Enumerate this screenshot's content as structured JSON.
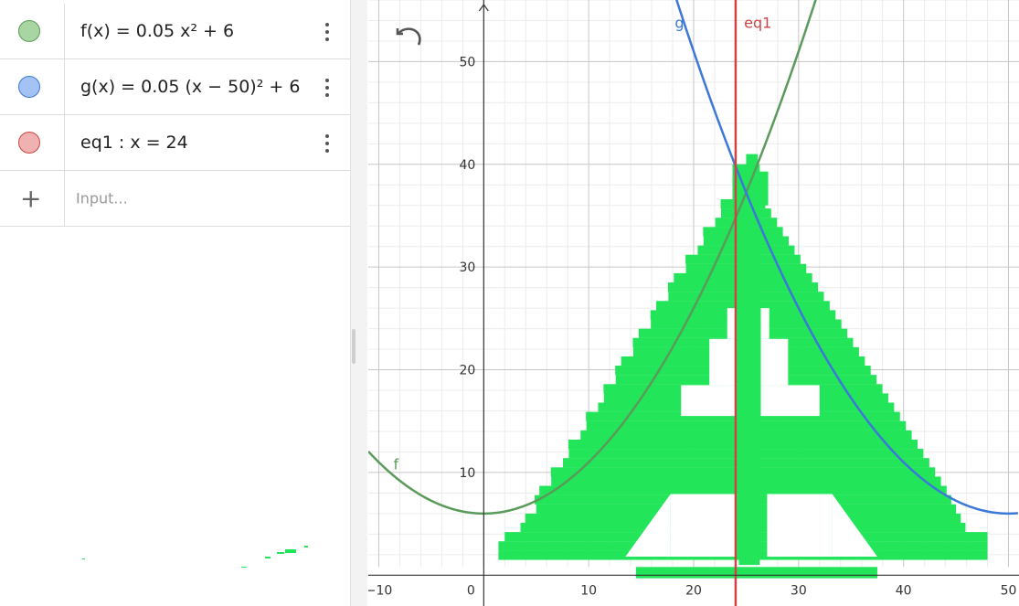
{
  "algebra": {
    "rows": [
      {
        "name": "f",
        "expression": "f(x)  =  0.05 x² + 6",
        "color": "#6aa84f"
      },
      {
        "name": "g",
        "expression": "g(x)  =  0.05 (x − 50)² + 6",
        "color": "#3c78d8"
      },
      {
        "name": "eq1",
        "expression": "eq1 : x  =  24",
        "color": "#cc4444"
      }
    ],
    "input_placeholder": "Input..."
  },
  "graph": {
    "x_range": [
      -11,
      51
    ],
    "y_range": [
      -3,
      56
    ],
    "x_ticks": [
      "−10",
      "0",
      "10",
      "20",
      "30",
      "40",
      "50"
    ],
    "y_ticks": [
      "10",
      "20",
      "30",
      "40",
      "50"
    ],
    "curve_labels": {
      "f": "f",
      "g": "g",
      "eq1": "eq1"
    },
    "colors": {
      "f": "#5a9a5a",
      "g": "#3c78d8",
      "eq1": "#cc4444",
      "fill": "#22e55a"
    }
  },
  "icons": {
    "undo": "undo-icon",
    "more": "kebab-menu-icon",
    "add": "plus-icon"
  }
}
